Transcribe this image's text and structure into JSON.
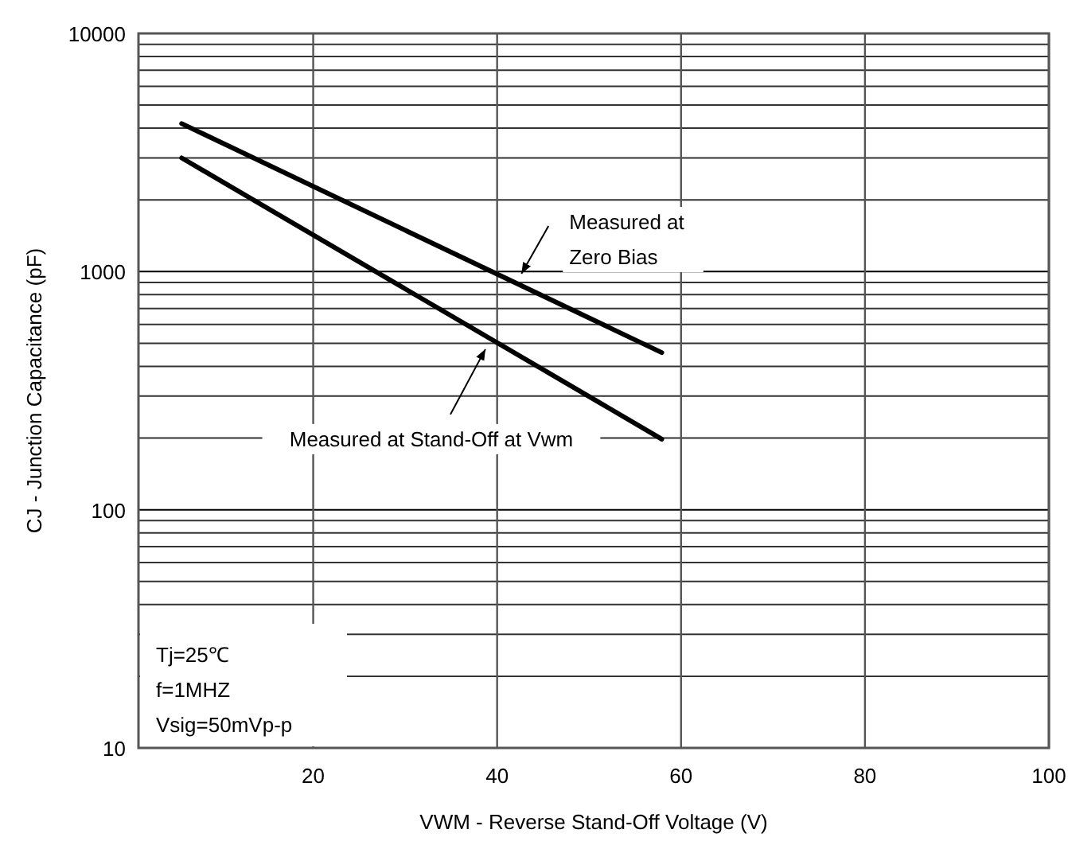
{
  "chart_data": {
    "type": "line",
    "xlabel": "VWM - Reverse Stand-Off Voltage (V)",
    "ylabel": "CJ - Junction Capacitance (pF)",
    "xlim": [
      1,
      100
    ],
    "xticks": [
      20,
      40,
      60,
      80,
      100
    ],
    "ylim": [
      10,
      10000
    ],
    "yticks": [
      10,
      {
        "value": 20,
        "label": null
      },
      {
        "value": 30,
        "label": null
      },
      {
        "value": 40,
        "label": null
      },
      {
        "value": 50,
        "label": null
      },
      {
        "value": 60,
        "label": null
      },
      {
        "value": 70,
        "label": null
      },
      {
        "value": 80,
        "label": null
      },
      {
        "value": 90,
        "label": null
      },
      100,
      {
        "value": 200,
        "label": null
      },
      {
        "value": 300,
        "label": null
      },
      {
        "value": 400,
        "label": null
      },
      {
        "value": 500,
        "label": null
      },
      {
        "value": 600,
        "label": null
      },
      {
        "value": 700,
        "label": null
      },
      {
        "value": 800,
        "label": null
      },
      {
        "value": 900,
        "label": null
      },
      1000,
      {
        "value": 2000,
        "label": null
      },
      {
        "value": 3000,
        "label": null
      },
      {
        "value": 4000,
        "label": null
      },
      {
        "value": 5000,
        "label": null
      },
      {
        "value": 6000,
        "label": null
      },
      {
        "value": 7000,
        "label": null
      },
      {
        "value": 8000,
        "label": null
      },
      {
        "value": 9000,
        "label": null
      },
      10000
    ],
    "log": "y",
    "grid": true,
    "marker": "none",
    "line_style": "solid",
    "x": [
      5.7,
      57.9
    ],
    "series": [
      {
        "color": "#000000",
        "values": [
          4180,
          457
        ]
      },
      {
        "color": "#000000",
        "values": [
          3000,
          198
        ]
      }
    ],
    "annotations": [
      {
        "text": "Measured at\nZero Bias",
        "x": 42.3,
        "y": 950
      },
      {
        "text": "Measured at Stand-Off at Vwm",
        "x": 38.9,
        "y": 487
      },
      "Tj=25℃",
      "f=1MHZ",
      "Vsig=50mVp-p"
    ]
  }
}
